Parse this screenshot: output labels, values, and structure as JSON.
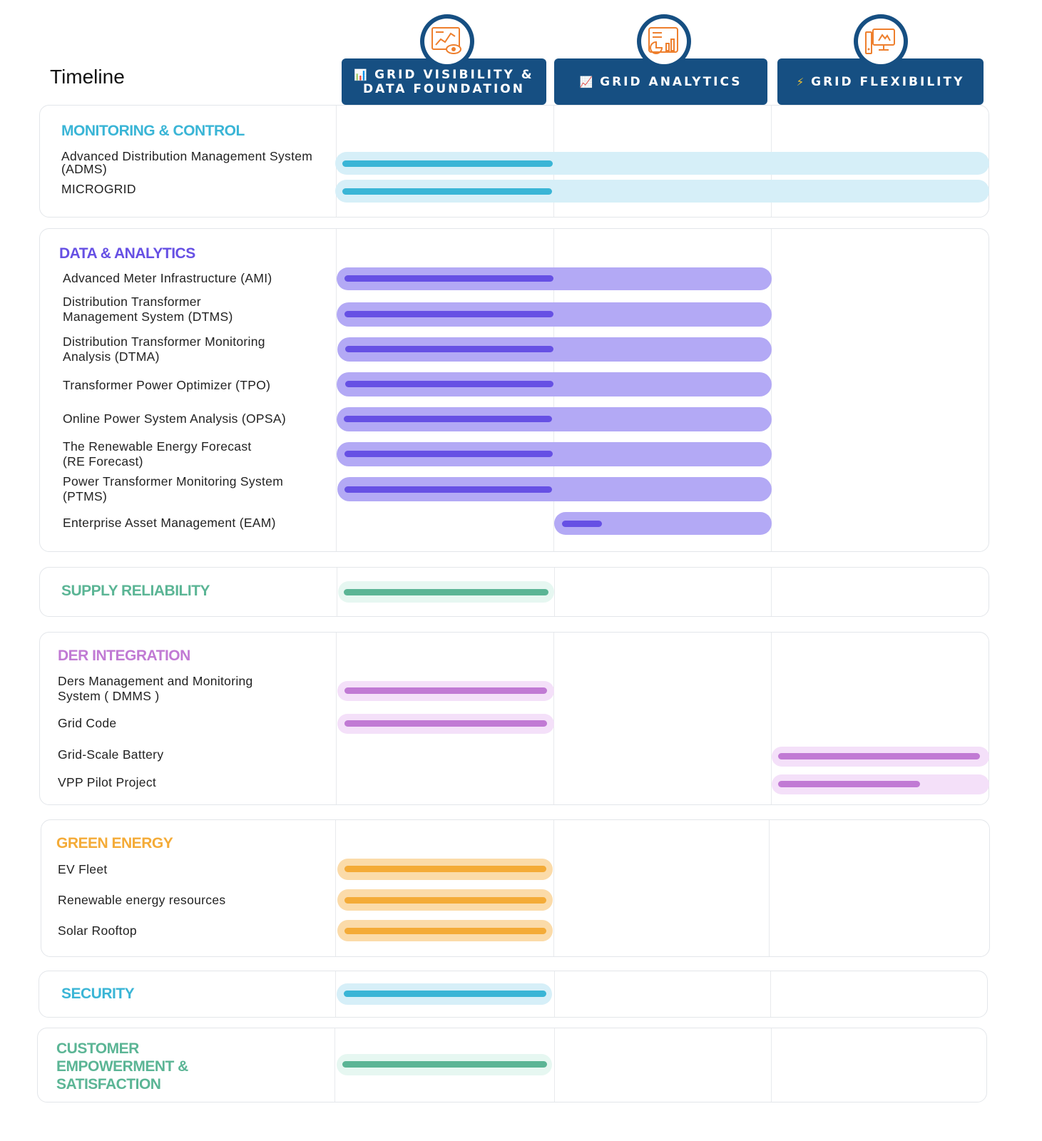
{
  "title": "Timeline",
  "phases": [
    {
      "line1": "GRID VISIBILITY &",
      "line2": "DATA FOUNDATION",
      "glyph": "📊",
      "icon": "chart-eye-icon"
    },
    {
      "line1": "GRID ANALYTICS",
      "glyph": "📈",
      "icon": "dashboard-chart-icon"
    },
    {
      "line1": "GRID FLEXIBILITY",
      "glyph": "⚡",
      "icon": "monitor-server-icon"
    }
  ],
  "colors": {
    "header": "#164f82",
    "cyan": "#3ab5d6",
    "cyan_light": "#d6eff8",
    "purple_dark": "#6650e4",
    "purple_light": "#b3a9f5",
    "green": "#5bb595",
    "green_light": "#e6f7f1",
    "magenta": "#c17ad4",
    "magenta_light": "#f4e0f9",
    "orange": "#f4ab37",
    "orange_light": "#fbdba9"
  },
  "sections": [
    {
      "category": "MONITORING & CONTROL",
      "items": [
        {
          "label": "Advanced Distribution Management System (ADMS)"
        },
        {
          "label": "MICROGRID"
        }
      ]
    },
    {
      "category": "DATA & ANALYTICS",
      "items": [
        {
          "label": "Advanced Meter Infrastructure (AMI)"
        },
        {
          "label": "Distribution Transformer Management System (DTMS)"
        },
        {
          "label": "Distribution Transformer Monitoring Analysis (DTMA)"
        },
        {
          "label": "Transformer Power Optimizer (TPO)"
        },
        {
          "label": "Online Power System Analysis (OPSA)"
        },
        {
          "label": "The Renewable Energy Forecast (RE Forecast)"
        },
        {
          "label": "Power Transformer Monitoring System (PTMS)"
        },
        {
          "label": "Enterprise Asset Management (EAM)"
        }
      ]
    },
    {
      "category": "SUPPLY RELIABILITY",
      "items": []
    },
    {
      "category": "DER INTEGRATION",
      "items": [
        {
          "label": "Ders Management and Monitoring System ( DMMS )"
        },
        {
          "label": "Grid Code"
        },
        {
          "label": "Grid-Scale Battery"
        },
        {
          "label": "VPP Pilot Project"
        }
      ]
    },
    {
      "category": "GREEN ENERGY",
      "items": [
        {
          "label": "EV Fleet"
        },
        {
          "label": "Renewable energy resources"
        },
        {
          "label": "Solar Rooftop"
        }
      ]
    },
    {
      "category": "SECURITY",
      "items": []
    },
    {
      "category": "CUSTOMER EMPOWERMENT & SATISFACTION",
      "items": []
    }
  ]
}
